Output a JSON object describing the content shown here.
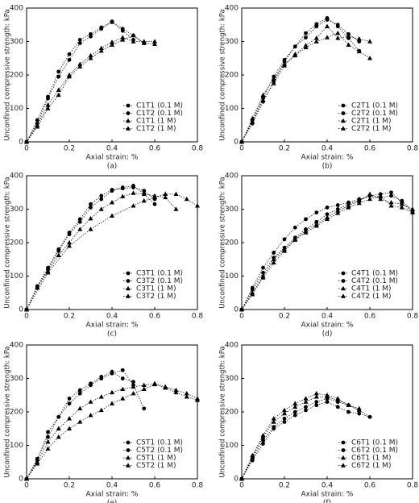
{
  "chart_data": [
    {
      "type": "line",
      "y_label": "Unconfined compressive strength: kPa",
      "x_label": "Axial strain: %",
      "caption": "(a)",
      "xlim": [
        0,
        0.8
      ],
      "ylim": [
        0,
        400
      ],
      "xticks": [
        0,
        0.2,
        0.4,
        0.6,
        0.8
      ],
      "yticks": [
        0,
        100,
        200,
        300,
        400
      ],
      "series": [
        {
          "name": "C1T1 (0.1 M)",
          "color": "#000",
          "marker": "circle",
          "x": [
            0,
            0.05,
            0.1,
            0.15,
            0.2,
            0.25,
            0.3,
            0.35,
            0.4,
            0.45,
            0.5,
            0.55
          ],
          "values": [
            0,
            65,
            135,
            210,
            262,
            305,
            322,
            342,
            360,
            338,
            318,
            295
          ]
        },
        {
          "name": "C1T2 (0.1 M)",
          "color": "#000",
          "marker": "circle",
          "x": [
            0,
            0.05,
            0.1,
            0.15,
            0.2,
            0.25,
            0.3,
            0.35,
            0.4,
            0.45,
            0.5
          ],
          "values": [
            0,
            55,
            130,
            195,
            245,
            295,
            315,
            338,
            358,
            332,
            305
          ]
        },
        {
          "name": "C1T1 (1 M)",
          "color": "#000",
          "marker": "triangle",
          "x": [
            0,
            0.05,
            0.1,
            0.15,
            0.2,
            0.25,
            0.3,
            0.35,
            0.4,
            0.45,
            0.5,
            0.55,
            0.6
          ],
          "values": [
            0,
            50,
            110,
            155,
            200,
            232,
            258,
            280,
            298,
            312,
            300,
            300,
            300
          ]
        },
        {
          "name": "C1T2 (1 M)",
          "color": "#000",
          "marker": "triangle",
          "x": [
            0,
            0.05,
            0.1,
            0.15,
            0.2,
            0.25,
            0.3,
            0.35,
            0.4,
            0.45,
            0.5,
            0.55,
            0.6
          ],
          "values": [
            0,
            45,
            100,
            140,
            195,
            225,
            250,
            272,
            290,
            305,
            318,
            295,
            292
          ]
        }
      ]
    },
    {
      "type": "line",
      "y_label": "Unconfined compressive strength: kPa",
      "x_label": "Axial strain: %",
      "caption": "(b)",
      "xlim": [
        0,
        0.8
      ],
      "ylim": [
        0,
        400
      ],
      "xticks": [
        0,
        0.2,
        0.4,
        0.6,
        0.8
      ],
      "yticks": [
        0,
        100,
        200,
        300,
        400
      ],
      "series": [
        {
          "name": "C2T1 (0.1 M)",
          "color": "#000",
          "marker": "circle",
          "x": [
            0,
            0.05,
            0.1,
            0.15,
            0.2,
            0.25,
            0.3,
            0.35,
            0.4,
            0.45,
            0.5,
            0.55
          ],
          "values": [
            0,
            65,
            132,
            195,
            245,
            285,
            325,
            352,
            370,
            345,
            310,
            272
          ]
        },
        {
          "name": "C2T2 (0.1 M)",
          "color": "#000",
          "marker": "circle",
          "x": [
            0,
            0.05,
            0.1,
            0.15,
            0.2,
            0.25,
            0.3,
            0.35,
            0.4,
            0.45,
            0.5,
            0.55
          ],
          "values": [
            0,
            55,
            120,
            180,
            240,
            285,
            312,
            345,
            365,
            350,
            322,
            300
          ]
        },
        {
          "name": "C2T1 (1 M)",
          "color": "#000",
          "marker": "triangle",
          "x": [
            0,
            0.05,
            0.1,
            0.15,
            0.2,
            0.25,
            0.3,
            0.35,
            0.4,
            0.45,
            0.5,
            0.55,
            0.6
          ],
          "values": [
            0,
            70,
            140,
            190,
            232,
            258,
            282,
            300,
            312,
            325,
            290,
            270,
            250
          ]
        },
        {
          "name": "C2T2 (1 M)",
          "color": "#000",
          "marker": "triangle",
          "x": [
            0,
            0.05,
            0.1,
            0.15,
            0.2,
            0.25,
            0.3,
            0.35,
            0.4,
            0.45,
            0.5,
            0.55,
            0.6
          ],
          "values": [
            0,
            60,
            125,
            175,
            228,
            262,
            288,
            310,
            345,
            310,
            315,
            308,
            300
          ]
        }
      ]
    },
    {
      "type": "line",
      "y_label": "Unconfined compressive strength: kPa",
      "x_label": "Axial strain: %",
      "caption": "(c)",
      "xlim": [
        0,
        0.8
      ],
      "ylim": [
        0,
        400
      ],
      "xticks": [
        0,
        0.2,
        0.4,
        0.6,
        0.8
      ],
      "yticks": [
        0,
        100,
        200,
        300,
        400
      ],
      "series": [
        {
          "name": "C3T1 (0.1 M)",
          "color": "#000",
          "marker": "circle",
          "x": [
            0,
            0.05,
            0.1,
            0.15,
            0.2,
            0.25,
            0.3,
            0.35,
            0.4,
            0.45,
            0.5,
            0.55,
            0.6
          ],
          "values": [
            0,
            65,
            120,
            175,
            225,
            262,
            305,
            330,
            355,
            365,
            370,
            345,
            315
          ]
        },
        {
          "name": "C3T2 (0.1 M)",
          "color": "#000",
          "marker": "circle",
          "x": [
            0,
            0.05,
            0.1,
            0.15,
            0.2,
            0.25,
            0.3,
            0.35,
            0.4,
            0.45,
            0.5,
            0.55,
            0.6
          ],
          "values": [
            0,
            70,
            125,
            180,
            230,
            270,
            315,
            340,
            358,
            362,
            365,
            355,
            330
          ]
        },
        {
          "name": "C3T1 (1 M)",
          "color": "#000",
          "marker": "triangle",
          "x": [
            0,
            0.05,
            0.1,
            0.15,
            0.2,
            0.25,
            0.3,
            0.35,
            0.4,
            0.45,
            0.5,
            0.55,
            0.6,
            0.65,
            0.7
          ],
          "values": [
            0,
            65,
            115,
            162,
            200,
            240,
            272,
            300,
            320,
            338,
            348,
            345,
            340,
            335,
            300
          ]
        },
        {
          "name": "C3T2 (1 M)",
          "color": "#000",
          "marker": "triangle",
          "x": [
            0,
            0.1,
            0.2,
            0.3,
            0.4,
            0.5,
            0.55,
            0.6,
            0.65,
            0.7,
            0.75,
            0.8
          ],
          "values": [
            0,
            110,
            190,
            240,
            280,
            310,
            325,
            335,
            345,
            345,
            330,
            310
          ]
        }
      ]
    },
    {
      "type": "line",
      "y_label": "Unconfined compressive strength: kPa",
      "x_label": "Axial strain: %",
      "caption": "(d)",
      "xlim": [
        0,
        0.8
      ],
      "ylim": [
        0,
        400
      ],
      "xticks": [
        0,
        0.2,
        0.4,
        0.6,
        0.8
      ],
      "yticks": [
        0,
        100,
        200,
        300,
        400
      ],
      "series": [
        {
          "name": "C4T1 (0.1 M)",
          "color": "#000",
          "marker": "circle",
          "x": [
            0,
            0.05,
            0.1,
            0.15,
            0.2,
            0.25,
            0.3,
            0.35,
            0.4,
            0.45,
            0.5,
            0.55,
            0.6,
            0.65,
            0.7,
            0.75,
            0.8
          ],
          "values": [
            0,
            65,
            125,
            170,
            210,
            245,
            270,
            290,
            305,
            312,
            320,
            330,
            340,
            345,
            350,
            320,
            290
          ]
        },
        {
          "name": "C4T2 (0.1 M)",
          "color": "#000",
          "marker": "circle",
          "x": [
            0,
            0.05,
            0.1,
            0.15,
            0.2,
            0.25,
            0.3,
            0.35,
            0.4,
            0.45,
            0.5,
            0.55,
            0.6,
            0.65,
            0.7,
            0.75,
            0.8
          ],
          "values": [
            0,
            60,
            110,
            155,
            185,
            215,
            240,
            262,
            285,
            300,
            315,
            325,
            340,
            335,
            340,
            325,
            295
          ]
        },
        {
          "name": "C4T1 (1 M)",
          "color": "#000",
          "marker": "triangle",
          "x": [
            0,
            0.05,
            0.1,
            0.15,
            0.2,
            0.25,
            0.3,
            0.35,
            0.4,
            0.45,
            0.5,
            0.55,
            0.6,
            0.65,
            0.7,
            0.75,
            0.8
          ],
          "values": [
            0,
            50,
            100,
            150,
            180,
            210,
            235,
            255,
            275,
            295,
            310,
            325,
            345,
            330,
            320,
            315,
            300
          ]
        },
        {
          "name": "C4T2 (1 M)",
          "color": "#000",
          "marker": "triangle",
          "x": [
            0,
            0.05,
            0.1,
            0.15,
            0.2,
            0.25,
            0.3,
            0.35,
            0.4,
            0.45,
            0.5,
            0.55,
            0.6,
            0.65,
            0.7,
            0.75,
            0.8
          ],
          "values": [
            0,
            45,
            95,
            140,
            175,
            208,
            230,
            250,
            270,
            288,
            305,
            318,
            330,
            340,
            310,
            305,
            290
          ]
        }
      ]
    },
    {
      "type": "line",
      "y_label": "Unconfined compressive strength: kPa",
      "x_label": "Axial strain: %",
      "caption": "(e)",
      "xlim": [
        0,
        0.8
      ],
      "ylim": [
        0,
        400
      ],
      "xticks": [
        0,
        0.2,
        0.4,
        0.6,
        0.8
      ],
      "yticks": [
        0,
        100,
        200,
        300,
        400
      ],
      "series": [
        {
          "name": "C5T1 (0.1 M)",
          "color": "#000",
          "marker": "circle",
          "x": [
            0,
            0.05,
            0.1,
            0.15,
            0.2,
            0.25,
            0.3,
            0.35,
            0.4,
            0.45,
            0.5,
            0.55
          ],
          "values": [
            0,
            55,
            140,
            185,
            225,
            255,
            280,
            300,
            315,
            325,
            280,
            210
          ]
        },
        {
          "name": "C5T2 (0.1 M)",
          "color": "#000",
          "marker": "circle",
          "x": [
            0,
            0.05,
            0.1,
            0.15,
            0.2,
            0.25,
            0.3,
            0.35,
            0.4,
            0.45,
            0.5
          ],
          "values": [
            0,
            60,
            125,
            185,
            240,
            265,
            285,
            305,
            320,
            300,
            290
          ]
        },
        {
          "name": "C5T1 (1 M)",
          "color": "#000",
          "marker": "triangle",
          "x": [
            0,
            0.05,
            0.1,
            0.15,
            0.2,
            0.25,
            0.3,
            0.35,
            0.4,
            0.45,
            0.5,
            0.55,
            0.6,
            0.65,
            0.7,
            0.75,
            0.8
          ],
          "values": [
            0,
            50,
            110,
            150,
            180,
            210,
            230,
            245,
            258,
            268,
            275,
            280,
            285,
            275,
            265,
            255,
            240
          ]
        },
        {
          "name": "C5T2 (1 M)",
          "color": "#000",
          "marker": "triangle",
          "x": [
            0,
            0.05,
            0.1,
            0.15,
            0.2,
            0.25,
            0.3,
            0.35,
            0.4,
            0.45,
            0.5,
            0.55,
            0.6,
            0.65,
            0.7,
            0.75,
            0.8
          ],
          "values": [
            0,
            45,
            90,
            125,
            150,
            170,
            190,
            205,
            225,
            240,
            255,
            268,
            282,
            272,
            258,
            245,
            235
          ]
        }
      ]
    },
    {
      "type": "line",
      "y_label": "Unconfined compressive strength: kPa",
      "x_label": "Axial strain: %",
      "caption": "(f)",
      "xlim": [
        0,
        0.8
      ],
      "ylim": [
        0,
        400
      ],
      "xticks": [
        0,
        0.2,
        0.4,
        0.6,
        0.8
      ],
      "yticks": [
        0,
        100,
        200,
        300,
        400
      ],
      "series": [
        {
          "name": "C6T1 (0.1 M)",
          "color": "#000",
          "marker": "circle",
          "x": [
            0,
            0.05,
            0.1,
            0.15,
            0.2,
            0.25,
            0.3,
            0.35,
            0.4,
            0.45,
            0.5,
            0.55,
            0.6
          ],
          "values": [
            0,
            55,
            105,
            150,
            170,
            190,
            205,
            220,
            230,
            215,
            200,
            195,
            185
          ]
        },
        {
          "name": "C6T2 (0.1 M)",
          "color": "#000",
          "marker": "circle",
          "x": [
            0,
            0.05,
            0.1,
            0.15,
            0.2,
            0.25,
            0.3,
            0.35,
            0.4,
            0.45,
            0.5,
            0.55,
            0.6
          ],
          "values": [
            0,
            60,
            115,
            155,
            180,
            200,
            215,
            230,
            240,
            230,
            220,
            205,
            185
          ]
        },
        {
          "name": "C6T1 (1 M)",
          "color": "#000",
          "marker": "triangle",
          "x": [
            0,
            0.05,
            0.1,
            0.15,
            0.2,
            0.25,
            0.3,
            0.35,
            0.4,
            0.45,
            0.5,
            0.55
          ],
          "values": [
            0,
            70,
            130,
            180,
            205,
            225,
            240,
            255,
            250,
            240,
            220,
            210
          ]
        },
        {
          "name": "C6T2 (1 M)",
          "color": "#000",
          "marker": "triangle",
          "x": [
            0,
            0.05,
            0.1,
            0.15,
            0.2,
            0.25,
            0.3,
            0.35,
            0.4,
            0.45,
            0.5,
            0.55
          ],
          "values": [
            0,
            65,
            125,
            170,
            195,
            215,
            230,
            245,
            245,
            235,
            220,
            205
          ]
        }
      ]
    }
  ]
}
